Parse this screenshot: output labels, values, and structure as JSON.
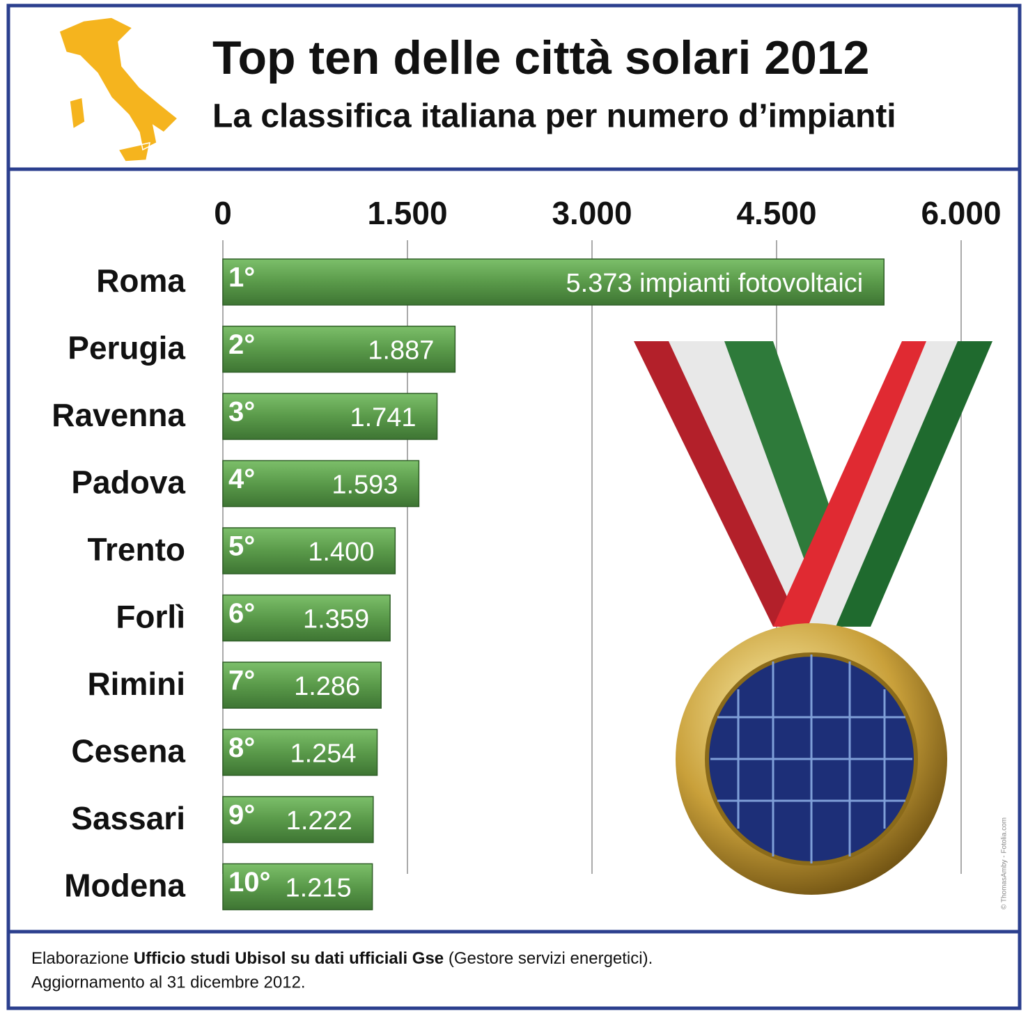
{
  "chart_data": {
    "type": "bar",
    "orientation": "horizontal",
    "title": "Top ten delle città solari 2012",
    "subtitle": "La classifica italiana per numero d’impianti",
    "categories": [
      "Roma",
      "Perugia",
      "Ravenna",
      "Padova",
      "Trento",
      "Forlì",
      "Rimini",
      "Cesena",
      "Sassari",
      "Modena"
    ],
    "ranks": [
      "1°",
      "2°",
      "3°",
      "4°",
      "5°",
      "6°",
      "7°",
      "8°",
      "9°",
      "10°"
    ],
    "values": [
      5373,
      1887,
      1741,
      1593,
      1400,
      1359,
      1286,
      1254,
      1222,
      1215
    ],
    "value_labels": [
      "5.373 impianti fotovoltaici",
      "1.887",
      "1.741",
      "1.593",
      "1.400",
      "1.359",
      "1.286",
      "1.254",
      "1.222",
      "1.215"
    ],
    "color": "#5a9a4a",
    "xlim": [
      0,
      6000
    ],
    "xticks": [
      0,
      {
        "value": 1500,
        "label": "1.500"
      },
      {
        "value": 3000,
        "label": "3.000"
      },
      {
        "value": 4500,
        "label": "4.500"
      },
      {
        "value": 6000,
        "label": "6.000"
      }
    ],
    "grid": true
  },
  "footer": {
    "line1": [
      "Elaborazione ",
      "Ufficio studi Ubisol su dati ufficiali Gse",
      " (Gestore servizi energetici)."
    ],
    "line2": "Aggiornamento al 31 dicembre 2012."
  },
  "credit": "© ThomasAmby - Fotolia.com"
}
